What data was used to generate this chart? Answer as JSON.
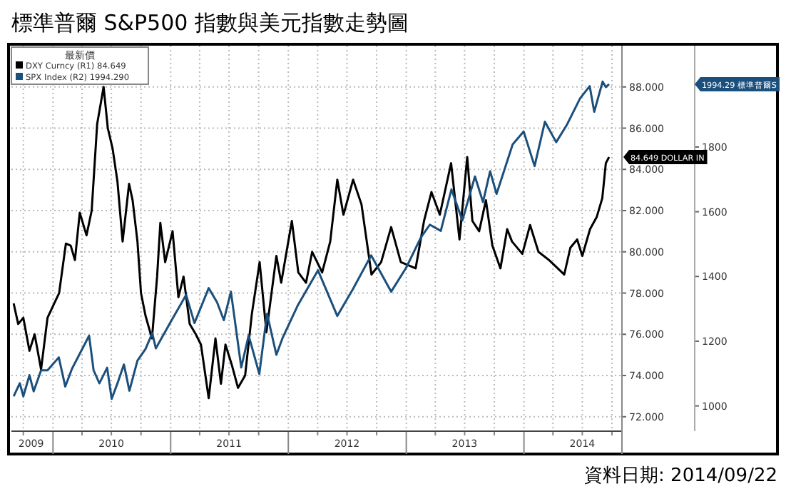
{
  "chart_data": {
    "type": "line",
    "title": "標準普爾 S&P500 指數與美元指數走勢圖",
    "legend_title": "最新價",
    "legend": "top left",
    "grid": true,
    "xlim": [
      "2009-08-25",
      "2014-11-01"
    ],
    "xticks": [
      {
        "value": "2009-10-01",
        "label": null
      },
      {
        "value": "2009-10-25",
        "label": "2009"
      },
      {
        "value": "2010-01-01",
        "label": null
      },
      {
        "value": "2010-04-01",
        "label": null
      },
      {
        "value": "2010-07-01",
        "label": "2010"
      },
      {
        "value": "2010-07-01",
        "label": null
      },
      {
        "value": "2010-10-01",
        "label": null
      },
      {
        "value": "2011-01-01",
        "label": null
      },
      {
        "value": "2011-04-01",
        "label": null
      },
      {
        "value": "2011-07-01",
        "label": "2011"
      },
      {
        "value": "2011-07-01",
        "label": null
      },
      {
        "value": "2011-10-01",
        "label": null
      },
      {
        "value": "2012-01-01",
        "label": null
      },
      {
        "value": "2012-04-01",
        "label": null
      },
      {
        "value": "2012-07-01",
        "label": "2012"
      },
      {
        "value": "2012-07-01",
        "label": null
      },
      {
        "value": "2012-10-01",
        "label": null
      },
      {
        "value": "2013-01-01",
        "label": null
      },
      {
        "value": "2013-04-01",
        "label": null
      },
      {
        "value": "2013-07-01",
        "label": "2013"
      },
      {
        "value": "2013-07-01",
        "label": null
      },
      {
        "value": "2013-10-01",
        "label": null
      },
      {
        "value": "2014-01-01",
        "label": null
      },
      {
        "value": "2014-04-01",
        "label": null
      },
      {
        "value": "2014-07-01",
        "label": "2014"
      },
      {
        "value": "2014-07-01",
        "label": null
      },
      {
        "value": "2014-10-01",
        "label": null
      }
    ],
    "ylim": [
      71.3,
      90.0
    ],
    "yticks": [
      {
        "value": 72,
        "label": "72.000"
      },
      {
        "value": 74,
        "label": "74.000"
      },
      {
        "value": 76,
        "label": "76.000"
      },
      {
        "value": 78,
        "label": "78.000"
      },
      {
        "value": 80,
        "label": "80.000"
      },
      {
        "value": 82,
        "label": "82.000"
      },
      {
        "value": 84,
        "label": "84.000"
      },
      {
        "value": 86,
        "label": "86.000"
      },
      {
        "value": 88,
        "label": "88.000"
      }
    ],
    "y2lim": [
      922,
      2113
    ],
    "y2ticks": [
      1000,
      1200,
      1400,
      1600,
      1800
    ],
    "series": [
      {
        "name": "DXY Curncy  (R1)    84.649",
        "color": "#000000",
        "x": [
          "2009-09-01",
          "2009-09-15",
          "2009-10-01",
          "2009-10-20",
          "2009-11-05",
          "2009-11-25",
          "2009-12-15",
          "2010-01-05",
          "2010-01-20",
          "2010-02-10",
          "2010-02-25",
          "2010-03-10",
          "2010-03-25",
          "2010-04-15",
          "2010-05-01",
          "2010-05-18",
          "2010-06-07",
          "2010-06-20",
          "2010-07-05",
          "2010-07-20",
          "2010-08-05",
          "2010-08-25",
          "2010-09-05",
          "2010-09-20",
          "2010-10-01",
          "2010-10-15",
          "2010-11-04",
          "2010-11-20",
          "2010-11-30",
          "2010-12-15",
          "2011-01-07",
          "2011-01-25",
          "2011-02-10",
          "2011-03-01",
          "2011-03-20",
          "2011-04-05",
          "2011-04-29",
          "2011-05-20",
          "2011-06-06",
          "2011-06-20",
          "2011-07-10",
          "2011-07-29",
          "2011-08-20",
          "2011-09-10",
          "2011-10-04",
          "2011-10-25",
          "2011-11-25",
          "2011-12-10",
          "2012-01-12",
          "2012-02-01",
          "2012-02-25",
          "2012-03-15",
          "2012-04-15",
          "2012-05-10",
          "2012-06-01",
          "2012-06-20",
          "2012-07-20",
          "2012-08-15",
          "2012-09-15",
          "2012-10-15",
          "2012-11-15",
          "2012-12-15",
          "2013-01-30",
          "2013-02-25",
          "2013-03-20",
          "2013-04-15",
          "2013-05-20",
          "2013-06-15",
          "2013-07-09",
          "2013-07-25",
          "2013-08-15",
          "2013-09-05",
          "2013-09-25",
          "2013-10-20",
          "2013-11-10",
          "2013-11-25",
          "2013-12-27",
          "2014-01-20",
          "2014-02-15",
          "2014-03-20",
          "2014-05-06",
          "2014-05-25",
          "2014-06-15",
          "2014-07-01",
          "2014-07-25",
          "2014-08-15",
          "2014-09-01",
          "2014-09-12",
          "2014-09-22"
        ],
        "values": [
          77.5,
          76.5,
          76.8,
          75.2,
          76.0,
          74.3,
          76.8,
          77.5,
          78.0,
          80.4,
          80.3,
          79.6,
          81.9,
          80.8,
          82.0,
          86.2,
          88.0,
          86.0,
          85.0,
          83.4,
          80.5,
          83.3,
          82.5,
          80.5,
          78.0,
          76.9,
          75.8,
          78.8,
          81.4,
          79.5,
          81.0,
          77.8,
          78.8,
          76.5,
          76.0,
          75.5,
          72.9,
          75.8,
          73.6,
          75.5,
          74.5,
          73.4,
          74.0,
          77.0,
          79.5,
          76.1,
          79.8,
          78.5,
          81.5,
          79.0,
          78.5,
          80.0,
          79.0,
          80.5,
          83.5,
          81.8,
          83.5,
          82.3,
          78.9,
          79.5,
          81.2,
          79.5,
          79.2,
          81.5,
          82.9,
          81.8,
          84.3,
          80.6,
          84.6,
          81.5,
          81.0,
          82.5,
          80.3,
          79.2,
          81.1,
          80.5,
          79.9,
          81.3,
          80.0,
          79.6,
          78.9,
          80.2,
          80.6,
          79.8,
          81.1,
          81.7,
          82.6,
          84.3,
          84.6
        ]
      },
      {
        "name": "SPX Index  (R2)  1994.290",
        "color": "#1b4f7c",
        "axis": "y2",
        "x": [
          "2009-09-01",
          "2009-09-20",
          "2009-10-01",
          "2009-10-20",
          "2009-11-02",
          "2009-11-25",
          "2009-12-15",
          "2010-01-19",
          "2010-02-08",
          "2010-03-01",
          "2010-04-23",
          "2010-05-07",
          "2010-05-25",
          "2010-06-18",
          "2010-07-02",
          "2010-07-20",
          "2010-08-09",
          "2010-08-26",
          "2010-09-20",
          "2010-10-15",
          "2010-11-05",
          "2010-11-16",
          "2010-12-31",
          "2011-02-18",
          "2011-03-16",
          "2011-04-29",
          "2011-05-25",
          "2011-06-15",
          "2011-07-07",
          "2011-08-08",
          "2011-08-31",
          "2011-10-03",
          "2011-10-27",
          "2011-11-25",
          "2011-12-15",
          "2012-01-31",
          "2012-04-02",
          "2012-06-01",
          "2012-07-20",
          "2012-09-14",
          "2012-11-15",
          "2012-12-31",
          "2013-02-15",
          "2013-03-15",
          "2013-04-18",
          "2013-05-21",
          "2013-06-24",
          "2013-08-02",
          "2013-08-27",
          "2013-09-18",
          "2013-10-08",
          "2013-11-27",
          "2013-12-31",
          "2014-02-03",
          "2014-03-07",
          "2014-04-11",
          "2014-05-15",
          "2014-06-24",
          "2014-07-24",
          "2014-08-07",
          "2014-09-02",
          "2014-09-12",
          "2014-09-22"
        ],
        "values": [
          1030,
          1070,
          1030,
          1095,
          1045,
          1110,
          1110,
          1150,
          1060,
          1115,
          1217,
          1110,
          1070,
          1118,
          1022,
          1070,
          1128,
          1047,
          1140,
          1176,
          1225,
          1178,
          1258,
          1343,
          1256,
          1364,
          1320,
          1265,
          1353,
          1119,
          1218,
          1099,
          1285,
          1158,
          1212,
          1312,
          1419,
          1278,
          1362,
          1465,
          1353,
          1426,
          1520,
          1560,
          1541,
          1669,
          1573,
          1709,
          1630,
          1725,
          1655,
          1808,
          1848,
          1741,
          1878,
          1815,
          1870,
          1950,
          1988,
          1909,
          2002,
          1985,
          1994
        ]
      }
    ],
    "annotations": [
      "84.649 DOLLAR IN",
      "1994.29 標準普爾S",
      "資料日期: 2014/09/22"
    ]
  }
}
